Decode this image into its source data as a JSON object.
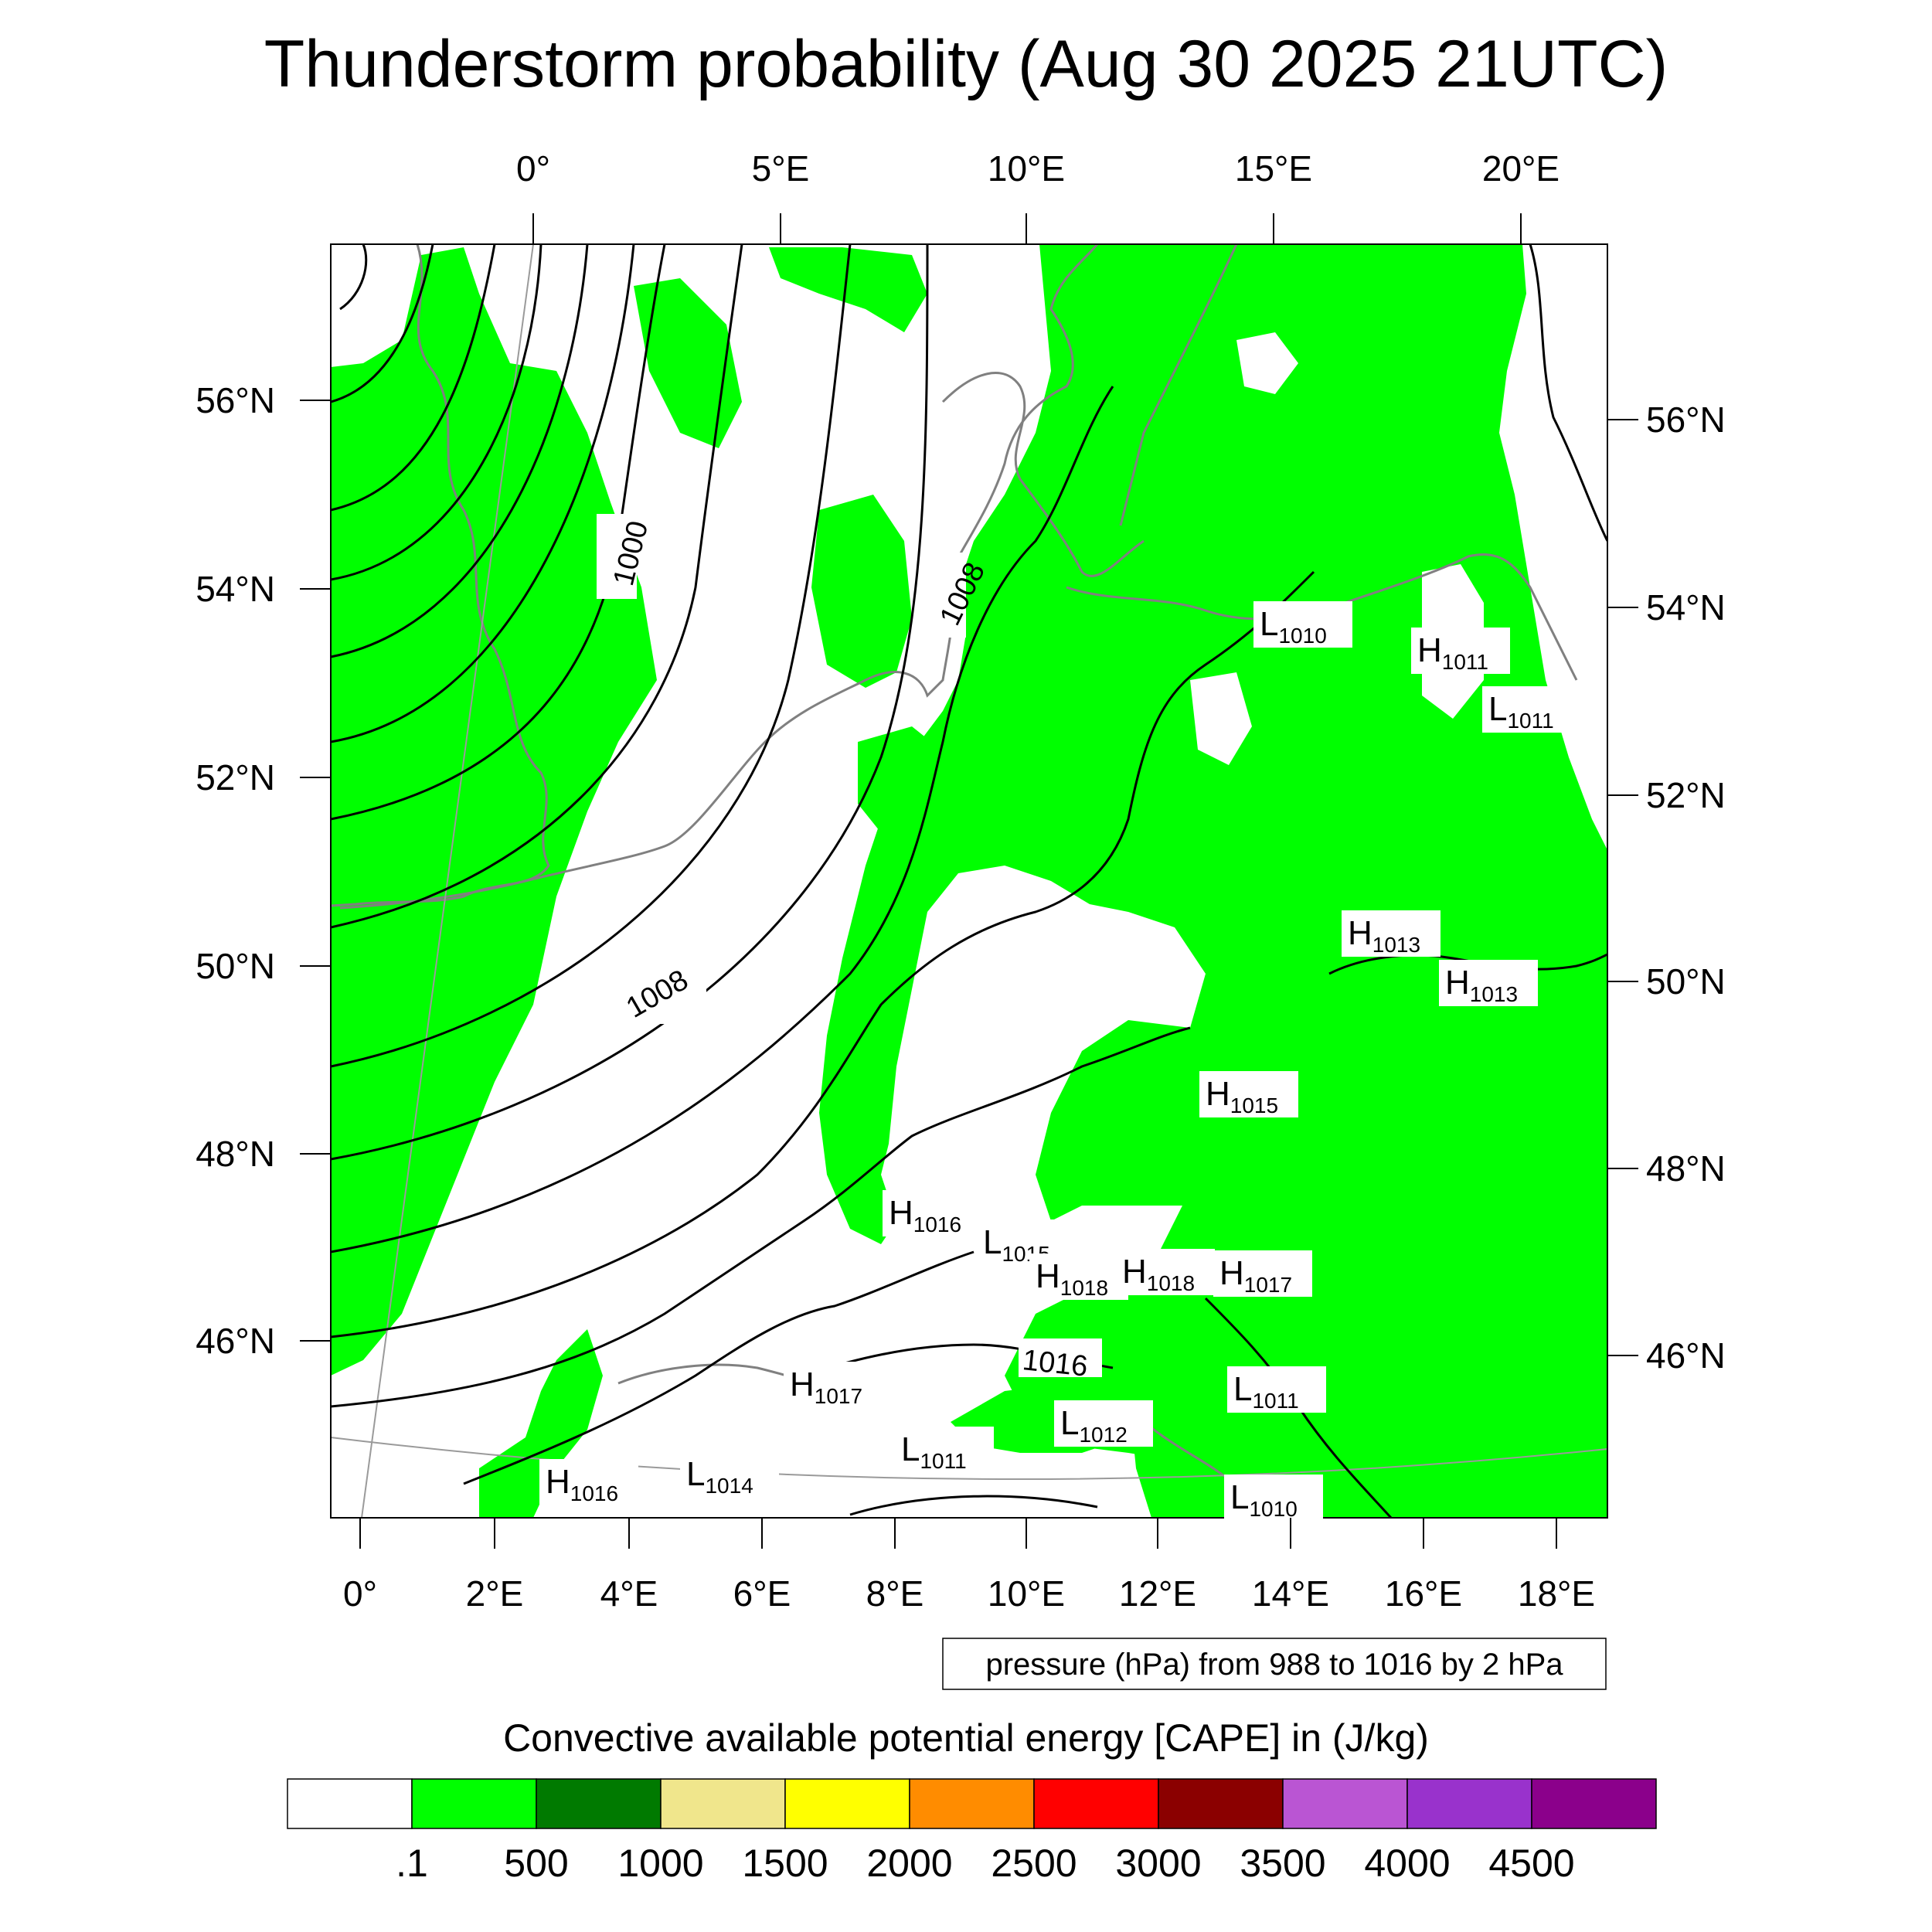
{
  "title": "Thunderstorm probability (Aug 30 2025 21UTC)",
  "top_lon_labels": [
    "0°",
    "5°E",
    "10°E",
    "15°E",
    "20°E"
  ],
  "bottom_lon_labels": [
    "0°",
    "2°E",
    "4°E",
    "6°E",
    "8°E",
    "10°E",
    "12°E",
    "14°E",
    "16°E",
    "18°E"
  ],
  "left_lat_labels": [
    "56°N",
    "54°N",
    "52°N",
    "50°N",
    "48°N",
    "46°N"
  ],
  "right_lat_labels": [
    "56°N",
    "54°N",
    "52°N",
    "50°N",
    "48°N",
    "46°N"
  ],
  "contour_line_labels": [
    "1000",
    "1008",
    "1008",
    "1016"
  ],
  "pressure_centers": [
    {
      "type": "L",
      "value": "1010"
    },
    {
      "type": "H",
      "value": "1011"
    },
    {
      "type": "L",
      "value": "1011"
    },
    {
      "type": "H",
      "value": "1013"
    },
    {
      "type": "H",
      "value": "1013"
    },
    {
      "type": "H",
      "value": "1015"
    },
    {
      "type": "H",
      "value": "1016"
    },
    {
      "type": "L",
      "value": "1015"
    },
    {
      "type": "H",
      "value": "1018"
    },
    {
      "type": "H",
      "value": "1018"
    },
    {
      "type": "H",
      "value": "1017"
    },
    {
      "type": "H",
      "value": "1017"
    },
    {
      "type": "L",
      "value": "1012"
    },
    {
      "type": "L",
      "value": "1011"
    },
    {
      "type": "L",
      "value": "1011"
    },
    {
      "type": "H",
      "value": "1016"
    },
    {
      "type": "L",
      "value": "1014"
    },
    {
      "type": "L",
      "value": "1010"
    }
  ],
  "contour_info": "pressure (hPa) from 988 to 1016 by 2 hPa",
  "colorbar": {
    "title": "Convective available potential energy [CAPE] in (J/kg)",
    "colors": [
      "#ffffff",
      "#00ff00",
      "#007a00",
      "#f0e68c",
      "#ffff00",
      "#ff8c00",
      "#ff0000",
      "#8b0000",
      "#ba55d3",
      "#9932cc",
      "#8b008b"
    ],
    "labels": [
      ".1",
      "500",
      "1000",
      "1500",
      "2000",
      "2500",
      "3000",
      "3500",
      "4000",
      "4500"
    ]
  },
  "map_colors": {
    "cape_fill": "#00ff00",
    "coastline": "#808080",
    "isobar": "#000000",
    "graticule": "#9a9a9a"
  }
}
